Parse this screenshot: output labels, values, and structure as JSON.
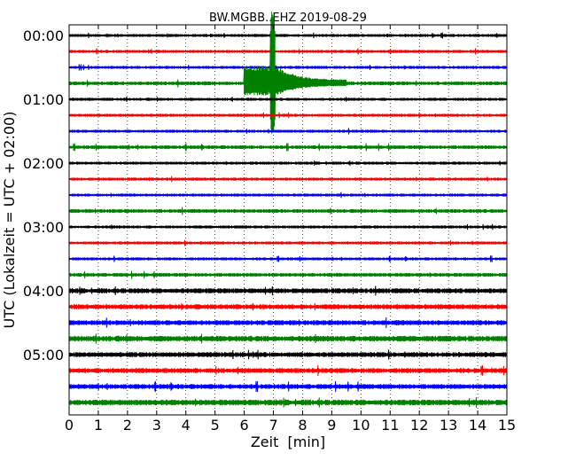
{
  "chart_data": {
    "type": "line",
    "title": "BW.MGBB..EHZ 2019-08-29",
    "xlabel": "Zeit  [min]",
    "ylabel": "UTC (Lokalzeit = UTC + 02:00)",
    "xlim": [
      0,
      15
    ],
    "x_ticks": [
      "0",
      "1",
      "2",
      "3",
      "4",
      "5",
      "6",
      "7",
      "8",
      "9",
      "10",
      "11",
      "12",
      "13",
      "14",
      "15"
    ],
    "y_tick_labels": [
      "00:00",
      "01:00",
      "02:00",
      "03:00",
      "04:00",
      "05:00"
    ],
    "grid": "vertical dotted",
    "trace_interval_minutes": 15,
    "trace_colors": [
      "#000000",
      "#ff0000",
      "#0000ff",
      "#008000"
    ],
    "traces": [
      {
        "start": "00:00",
        "color": "#000000"
      },
      {
        "start": "00:15",
        "color": "#ff0000"
      },
      {
        "start": "00:30",
        "color": "#0000ff"
      },
      {
        "start": "00:45",
        "color": "#008000",
        "event": {
          "onset_min": 6.0,
          "peak_min": 6.95,
          "peak_amplitude_traces": 4.5,
          "coda_end_min": 9.5
        }
      },
      {
        "start": "01:00",
        "color": "#000000"
      },
      {
        "start": "01:15",
        "color": "#ff0000"
      },
      {
        "start": "01:30",
        "color": "#0000ff"
      },
      {
        "start": "01:45",
        "color": "#008000"
      },
      {
        "start": "02:00",
        "color": "#000000"
      },
      {
        "start": "02:15",
        "color": "#ff0000"
      },
      {
        "start": "02:30",
        "color": "#0000ff"
      },
      {
        "start": "02:45",
        "color": "#008000"
      },
      {
        "start": "03:00",
        "color": "#000000"
      },
      {
        "start": "03:15",
        "color": "#ff0000"
      },
      {
        "start": "03:30",
        "color": "#0000ff"
      },
      {
        "start": "03:45",
        "color": "#008000"
      },
      {
        "start": "04:00",
        "color": "#000000"
      },
      {
        "start": "04:15",
        "color": "#ff0000"
      },
      {
        "start": "04:30",
        "color": "#0000ff"
      },
      {
        "start": "04:45",
        "color": "#008000"
      },
      {
        "start": "05:00",
        "color": "#000000"
      },
      {
        "start": "05:15",
        "color": "#ff0000"
      },
      {
        "start": "05:30",
        "color": "#0000ff"
      },
      {
        "start": "05:45",
        "color": "#008000"
      }
    ]
  }
}
